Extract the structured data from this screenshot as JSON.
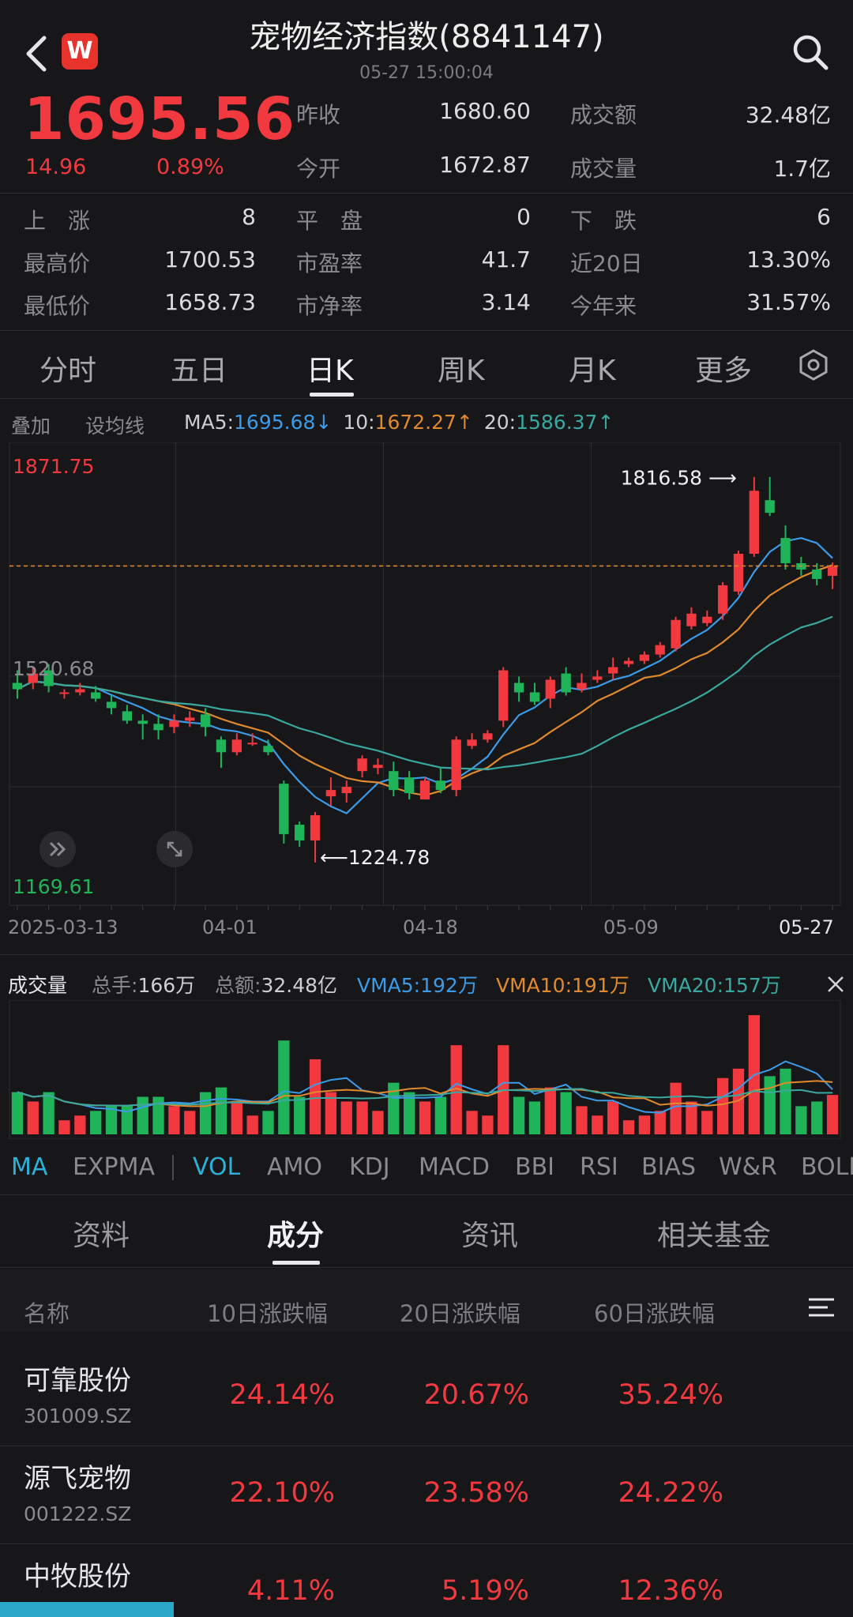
{
  "header": {
    "title": "宠物经济指数(8841147)",
    "datetime": "05-27 15:00:04"
  },
  "quote": {
    "price": "1695.56",
    "change": "14.96",
    "change_pct": "0.89%",
    "stats": [
      {
        "label": "昨收",
        "value": "1680.60"
      },
      {
        "label": "成交额",
        "value": "32.48亿"
      },
      {
        "label": "今开",
        "value": "1672.87"
      },
      {
        "label": "成交量",
        "value": "1.7亿"
      }
    ],
    "breadth": [
      {
        "label": "上　涨",
        "value": "8"
      },
      {
        "label": "平　盘",
        "value": "0"
      },
      {
        "label": "下　跌",
        "value": "6"
      }
    ],
    "metrics": [
      {
        "label": "最高价",
        "value": "1700.53"
      },
      {
        "label": "市盈率",
        "value": "41.7"
      },
      {
        "label": "近20日",
        "value": "13.30%"
      },
      {
        "label": "最低价",
        "value": "1658.73"
      },
      {
        "label": "市净率",
        "value": "3.14"
      },
      {
        "label": "今年来",
        "value": "31.57%"
      }
    ]
  },
  "period_tabs": [
    "分时",
    "五日",
    "日K",
    "周K",
    "月K",
    "更多"
  ],
  "ma_legend": {
    "overlay": "叠加",
    "set_ma": "设均线",
    "ma5_label": "MA5:",
    "ma5_value": "1695.68↓",
    "ma10_label": "10:",
    "ma10_value": "1672.27↑",
    "ma20_label": "20:",
    "ma20_value": "1586.37↑"
  },
  "colors": {
    "up": "#f2393f",
    "down": "#1fb35a",
    "ma5": "#3c9be8",
    "ma10": "#e0892d",
    "ma20": "#39a8a0"
  },
  "chart_data": {
    "type": "candlestick",
    "y_labels": {
      "max": "1871.75",
      "mid": "1520.68",
      "min": "1169.61"
    },
    "ylim": [
      1169.61,
      1871.75
    ],
    "x_ticks": [
      "2025-03-13",
      "04-01",
      "04-18",
      "05-09",
      "05-27"
    ],
    "annotations": {
      "high": "1816.58",
      "low": "1224.78"
    },
    "last_price": 1695.56,
    "candles": [
      [
        1510,
        1500,
        1530,
        1485
      ],
      [
        1510,
        1525,
        1535,
        1500
      ],
      [
        1530,
        1505,
        1540,
        1495
      ],
      [
        1495,
        1495,
        1500,
        1485
      ],
      [
        1495,
        1500,
        1510,
        1490
      ],
      [
        1495,
        1485,
        1505,
        1480
      ],
      [
        1480,
        1470,
        1490,
        1460
      ],
      [
        1465,
        1450,
        1475,
        1445
      ],
      [
        1450,
        1445,
        1460,
        1420
      ],
      [
        1445,
        1435,
        1460,
        1420
      ],
      [
        1440,
        1450,
        1460,
        1430
      ],
      [
        1450,
        1455,
        1465,
        1440
      ],
      [
        1460,
        1440,
        1470,
        1425
      ],
      [
        1420,
        1400,
        1425,
        1375
      ],
      [
        1400,
        1420,
        1430,
        1395
      ],
      [
        1415,
        1415,
        1430,
        1410
      ],
      [
        1410,
        1400,
        1420,
        1395
      ],
      [
        1350,
        1270,
        1355,
        1255
      ],
      [
        1285,
        1260,
        1290,
        1250
      ],
      [
        1260,
        1300,
        1305,
        1225
      ],
      [
        1330,
        1340,
        1360,
        1315
      ],
      [
        1335,
        1345,
        1355,
        1320
      ],
      [
        1370,
        1390,
        1395,
        1360
      ],
      [
        1375,
        1380,
        1390,
        1365
      ],
      [
        1370,
        1340,
        1385,
        1330
      ],
      [
        1360,
        1335,
        1370,
        1325
      ],
      [
        1325,
        1355,
        1360,
        1325
      ],
      [
        1355,
        1340,
        1375,
        1335
      ],
      [
        1340,
        1420,
        1425,
        1330
      ],
      [
        1410,
        1420,
        1430,
        1405
      ],
      [
        1420,
        1430,
        1435,
        1415
      ],
      [
        1450,
        1530,
        1535,
        1440
      ],
      [
        1510,
        1495,
        1520,
        1480
      ],
      [
        1495,
        1480,
        1510,
        1475
      ],
      [
        1485,
        1515,
        1520,
        1470
      ],
      [
        1525,
        1495,
        1535,
        1490
      ],
      [
        1500,
        1510,
        1525,
        1495
      ],
      [
        1515,
        1520,
        1530,
        1510
      ],
      [
        1525,
        1535,
        1550,
        1515
      ],
      [
        1540,
        1545,
        1550,
        1535
      ],
      [
        1545,
        1555,
        1560,
        1540
      ],
      [
        1555,
        1570,
        1575,
        1550
      ],
      [
        1565,
        1610,
        1615,
        1560
      ],
      [
        1600,
        1620,
        1630,
        1595
      ],
      [
        1605,
        1615,
        1625,
        1600
      ],
      [
        1620,
        1665,
        1670,
        1610
      ],
      [
        1655,
        1715,
        1720,
        1650
      ],
      [
        1715,
        1815,
        1837,
        1710
      ],
      [
        1800,
        1780,
        1837,
        1775
      ],
      [
        1740,
        1700,
        1760,
        1690
      ],
      [
        1700,
        1690,
        1710,
        1680
      ],
      [
        1690,
        1675,
        1700,
        1665
      ],
      [
        1680,
        1695,
        1701,
        1659
      ]
    ]
  },
  "volume_legend": {
    "title": "成交量",
    "total_hands_label": "总手:",
    "total_hands": "166万",
    "total_amount_label": "总额:",
    "total_amount": "32.48亿",
    "vma5": "VMA5:192万",
    "vma10": "VMA10:191万",
    "vma20": "VMA20:157万"
  },
  "indicator_tabs": [
    "MA",
    "EXPMA",
    "VOL",
    "AMO",
    "KDJ",
    "MACD",
    "BBI",
    "RSI",
    "BIAS",
    "W&R",
    "BOLL"
  ],
  "bottom_tabs": [
    "资料",
    "成分",
    "资讯",
    "相关基金"
  ],
  "table": {
    "headers": [
      "名称",
      "10日涨跌幅",
      "20日涨跌幅",
      "60日涨跌幅"
    ],
    "rows": [
      {
        "name": "可靠股份",
        "code": "301009.SZ",
        "d10": "24.14%",
        "d20": "20.67%",
        "d60": "35.24%"
      },
      {
        "name": "源飞宠物",
        "code": "001222.SZ",
        "d10": "22.10%",
        "d20": "23.58%",
        "d60": "24.22%"
      },
      {
        "name": "中牧股份",
        "code": "",
        "d10": "4.11%",
        "d20": "5.19%",
        "d60": "12.36%"
      }
    ]
  }
}
